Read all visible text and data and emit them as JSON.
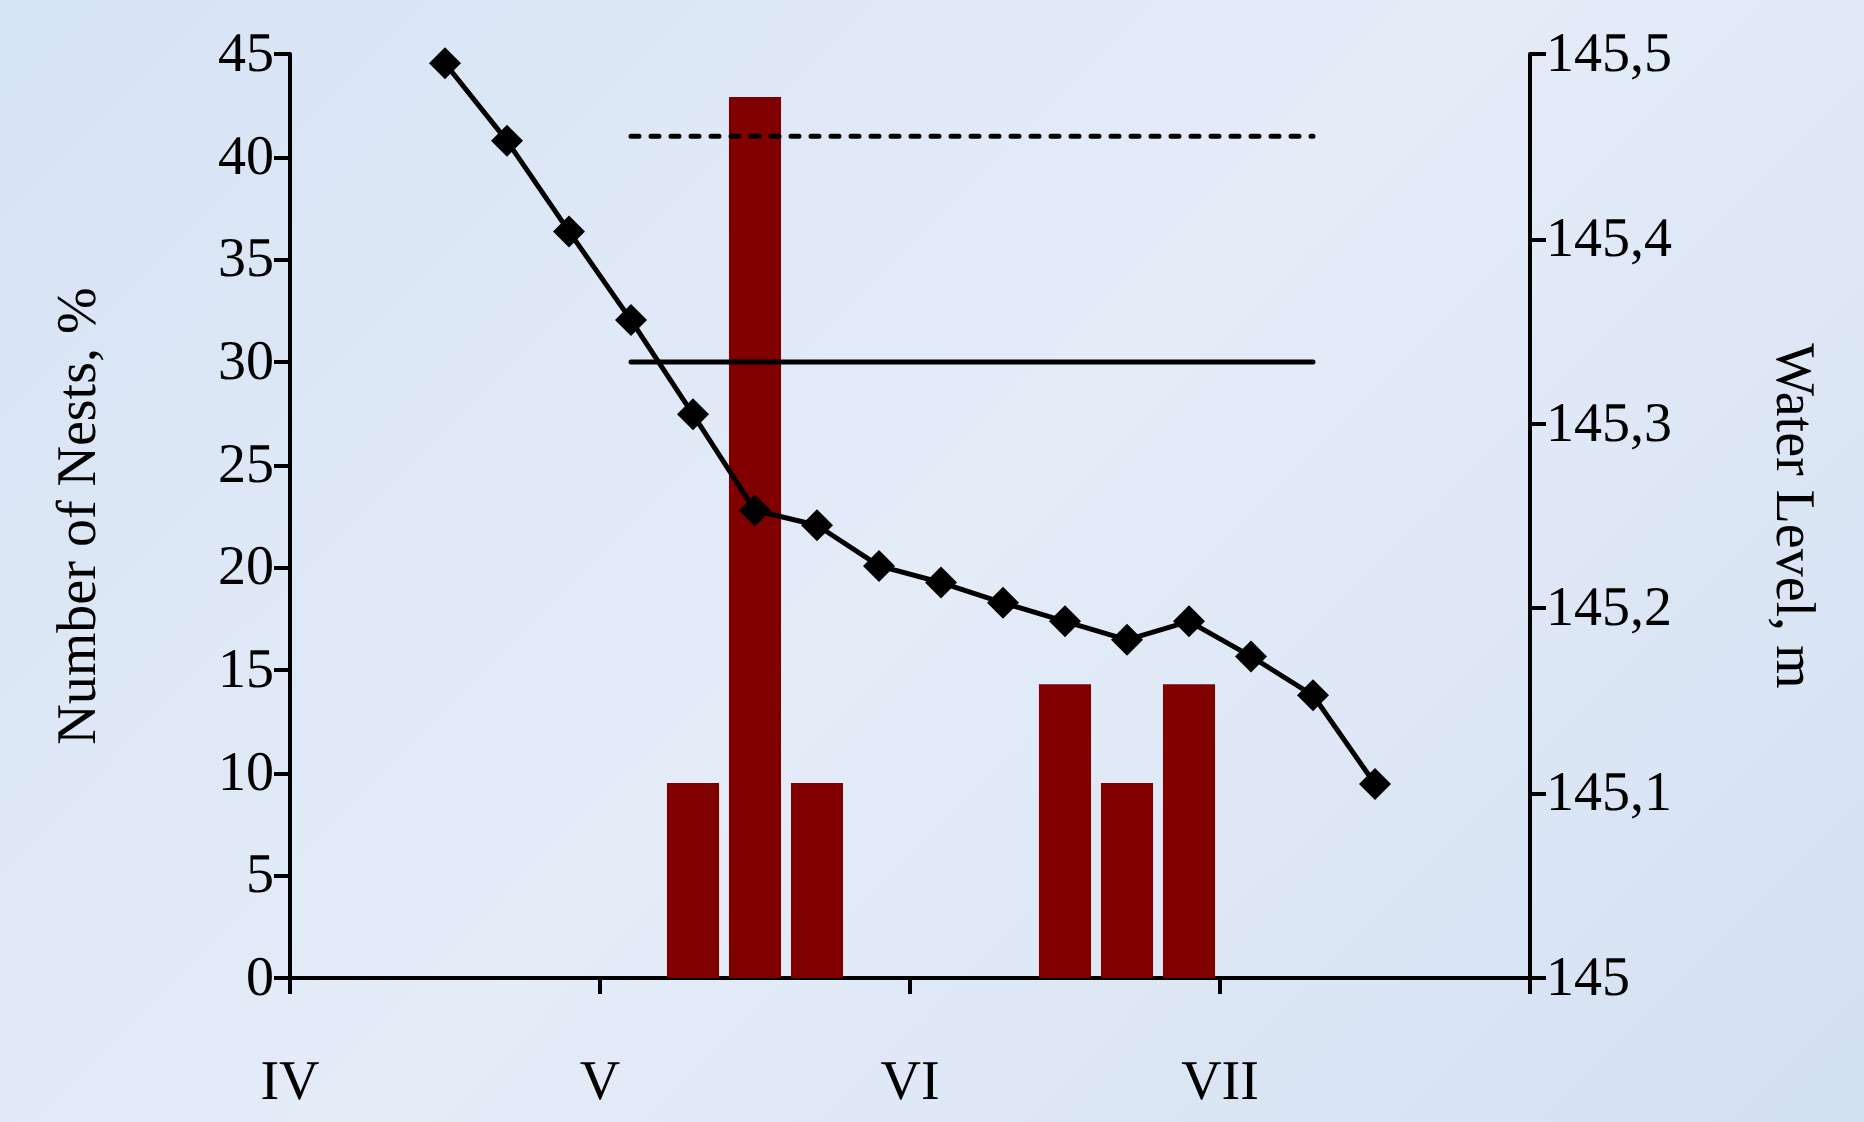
{
  "chart_data": {
    "type": "bar",
    "ylabel": "Number of Nests, %",
    "y2label": "Water Level, m",
    "categories": [
      "IV",
      null,
      null,
      null,
      null,
      null,
      null,
      null,
      null,
      null,
      "V",
      null,
      null,
      null,
      null,
      null,
      null,
      null,
      null,
      null,
      "VI",
      null,
      null,
      null,
      null,
      null,
      null,
      null,
      null,
      null,
      "VII",
      null,
      null,
      null,
      null,
      null,
      null,
      null,
      null,
      null,
      null
    ],
    "ylim": [
      0,
      45
    ],
    "yticks": [
      0,
      5,
      10,
      15,
      20,
      25,
      30,
      35,
      40,
      45
    ],
    "y2lim": [
      145,
      145.5
    ],
    "y2ticks": [
      {
        "value": 145,
        "label": "145"
      },
      {
        "value": 145.1,
        "label": "145,1"
      },
      {
        "value": 145.2,
        "label": "145,2"
      },
      {
        "value": 145.3,
        "label": "145,3"
      },
      {
        "value": 145.4,
        "label": "145,4"
      },
      {
        "value": 145.5,
        "label": "145,5"
      }
    ],
    "grid": false,
    "marker": "diamond",
    "series": [
      {
        "color": "#800000",
        "values": [
          null,
          null,
          null,
          null,
          null,
          null,
          null,
          null,
          null,
          null,
          null,
          null,
          null,
          9.5,
          null,
          42.9,
          null,
          9.5,
          null,
          null,
          null,
          null,
          null,
          null,
          null,
          14.3,
          null,
          9.5,
          null,
          14.3,
          null,
          null,
          null,
          null,
          null,
          null,
          null,
          null,
          null,
          null,
          null
        ]
      },
      {
        "type": "line",
        "axis": "y2",
        "color": "#000000",
        "values": [
          null,
          null,
          null,
          null,
          null,
          145.495,
          null,
          145.453,
          null,
          145.404,
          null,
          145.356,
          null,
          145.305,
          null,
          145.253,
          null,
          145.245,
          null,
          145.223,
          null,
          145.214,
          null,
          145.203,
          null,
          145.193,
          null,
          145.183,
          null,
          145.193,
          null,
          145.174,
          null,
          145.153,
          null,
          145.105,
          null,
          null,
          null,
          null,
          null
        ]
      },
      {
        "type": "line",
        "color": "#000000",
        "marker": "none",
        "line_style": "solid",
        "values": [
          null,
          null,
          null,
          null,
          null,
          null,
          null,
          null,
          null,
          null,
          null,
          30,
          30,
          30,
          30,
          30,
          30,
          30,
          30,
          30,
          30,
          30,
          30,
          30,
          30,
          30,
          30,
          30,
          30,
          30,
          30,
          30,
          30,
          30,
          null,
          null,
          null,
          null,
          null,
          null,
          null
        ]
      },
      {
        "type": "line",
        "color": "#000000",
        "marker": "none",
        "line_style": "dotted",
        "values": [
          null,
          null,
          null,
          null,
          null,
          null,
          null,
          null,
          null,
          null,
          null,
          41,
          41,
          41,
          41,
          41,
          41,
          41,
          41,
          41,
          41,
          41,
          41,
          41,
          41,
          41,
          41,
          41,
          41,
          41,
          41,
          41,
          41,
          41,
          null,
          null,
          null,
          null,
          null,
          null,
          null
        ]
      }
    ]
  }
}
